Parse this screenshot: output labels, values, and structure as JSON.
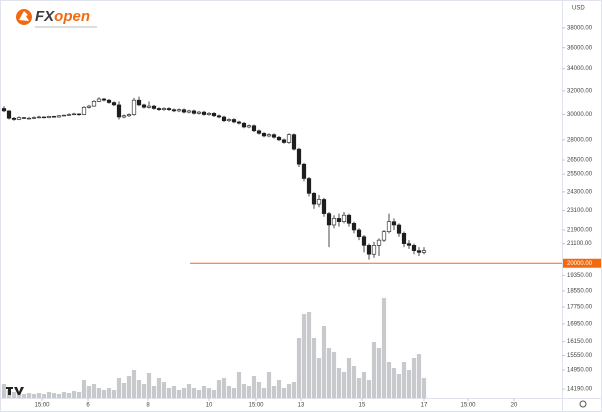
{
  "logo": [
    "FX",
    "open"
  ],
  "chart_data": {
    "type": "candlestick",
    "currency": "USD",
    "log_scale": true,
    "ylim": [
      13850,
      41000
    ],
    "yticks": [
      {
        "value": 38000,
        "label": "38000.00"
      },
      {
        "value": 36000,
        "label": "36000.00"
      },
      {
        "value": 34000,
        "label": "34000.00"
      },
      {
        "value": 32000,
        "label": "32000.00"
      },
      {
        "value": 30000,
        "label": "30000.00"
      },
      {
        "value": 28000,
        "label": "28000.00"
      },
      {
        "value": 26500,
        "label": "26500.00"
      },
      {
        "value": 25500,
        "label": "25500.00"
      },
      {
        "value": 24300,
        "label": "24300.00"
      },
      {
        "value": 23100,
        "label": "23100.00"
      },
      {
        "value": 21900,
        "label": "21900.00"
      },
      {
        "value": 21100,
        "label": "21100.00"
      },
      {
        "value": 19350,
        "label": "19350.00"
      },
      {
        "value": 18550,
        "label": "18550.00"
      },
      {
        "value": 17750,
        "label": "17750.00"
      },
      {
        "value": 16950,
        "label": "16950.00"
      },
      {
        "value": 16150,
        "label": "16150.00"
      },
      {
        "value": 15550,
        "label": "15550.00"
      },
      {
        "value": 14950,
        "label": "14950.00"
      },
      {
        "value": 14190,
        "label": "14190.00"
      }
    ],
    "xlim": [
      -0.8,
      111.6
    ],
    "xticks": [
      {
        "value": 7.6,
        "label": "15:00"
      },
      {
        "value": 16.8,
        "label": "6"
      },
      {
        "value": 28.8,
        "label": "8"
      },
      {
        "value": 41,
        "label": "10"
      },
      {
        "value": 50.4,
        "label": "15:00"
      },
      {
        "value": 59.4,
        "label": "13"
      },
      {
        "value": 71.6,
        "label": "15"
      },
      {
        "value": 84,
        "label": "17"
      },
      {
        "value": 92.8,
        "label": "15:00"
      },
      {
        "value": 102,
        "label": "20"
      }
    ],
    "up_color": "#ffffff",
    "down_color": "#1e1e1e",
    "volume_color": "#c8c9cd",
    "price_line": {
      "value": 20000,
      "label": "20000.00",
      "color": "#f26a10"
    },
    "open": [
      30500,
      30300,
      29700,
      29600,
      29750,
      29700,
      29700,
      29750,
      29800,
      29750,
      29850,
      29800,
      29900,
      29950,
      30000,
      30050,
      30000,
      30600,
      30700,
      31100,
      31300,
      31200,
      31000,
      30800,
      29800,
      29900,
      30000,
      31200,
      30800,
      30600,
      30700,
      30500,
      30400,
      30500,
      30400,
      30300,
      30400,
      30200,
      30300,
      30100,
      30200,
      30000,
      30100,
      29900,
      29800,
      29500,
      29600,
      29400,
      29300,
      29000,
      29100,
      28700,
      28500,
      28300,
      28400,
      28200,
      28000,
      27800,
      28400,
      27300,
      26200,
      25200,
      24200,
      23500,
      23800,
      22900,
      22200,
      22600,
      22400,
      22800,
      22300,
      21900,
      21500,
      21000,
      20500,
      21000,
      21300,
      21800,
      22400,
      22200,
      21700,
      21100,
      21000,
      20700,
      20600
    ],
    "high": [
      30700,
      30350,
      29800,
      29850,
      29800,
      29800,
      29850,
      29900,
      29850,
      29900,
      29900,
      29950,
      30000,
      30100,
      30150,
      30100,
      30700,
      30800,
      31200,
      31450,
      31400,
      31300,
      31100,
      31100,
      30000,
      30100,
      31400,
      31500,
      30900,
      31100,
      30800,
      30600,
      30600,
      30600,
      30500,
      30500,
      30500,
      30400,
      30400,
      30300,
      30300,
      30200,
      30200,
      30000,
      29900,
      29700,
      29700,
      29500,
      29400,
      29200,
      29200,
      28800,
      28600,
      28500,
      28500,
      28300,
      28100,
      28500,
      28500,
      27400,
      26300,
      25300,
      24300,
      24100,
      23900,
      23000,
      22800,
      22900,
      23000,
      22900,
      22400,
      22000,
      21600,
      21100,
      21200,
      21400,
      21900,
      22900,
      22600,
      22300,
      21800,
      21300,
      21100,
      20900,
      20900
    ],
    "low": [
      30200,
      29600,
      29500,
      29550,
      29650,
      29650,
      29650,
      29700,
      29700,
      29700,
      29750,
      29750,
      29850,
      29900,
      29950,
      29900,
      29950,
      30500,
      30650,
      31050,
      31100,
      30900,
      30700,
      29600,
      29700,
      29800,
      29900,
      30700,
      30500,
      30500,
      30400,
      30300,
      30300,
      30300,
      30200,
      30200,
      30100,
      30100,
      30000,
      30000,
      29900,
      29900,
      29800,
      29700,
      29400,
      29400,
      29300,
      29200,
      28900,
      28900,
      28600,
      28400,
      28200,
      28200,
      28100,
      27900,
      27700,
      27700,
      27200,
      26000,
      25000,
      24000,
      23200,
      23300,
      22700,
      20900,
      22000,
      22100,
      22300,
      22100,
      21700,
      21300,
      20600,
      20200,
      20300,
      20400,
      21200,
      21700,
      21900,
      21500,
      20900,
      20800,
      20500,
      20400,
      20500
    ],
    "close": [
      30300,
      29700,
      29600,
      29750,
      29700,
      29700,
      29750,
      29800,
      29750,
      29850,
      29800,
      29900,
      29950,
      30000,
      30050,
      30000,
      30600,
      30700,
      31100,
      31300,
      31200,
      31000,
      30800,
      29800,
      29900,
      30000,
      31200,
      30800,
      30600,
      30700,
      30500,
      30400,
      30500,
      30400,
      30300,
      30400,
      30200,
      30300,
      30100,
      30200,
      30000,
      30100,
      29900,
      29800,
      29500,
      29600,
      29400,
      29300,
      29000,
      29100,
      28700,
      28500,
      28300,
      28400,
      28200,
      28000,
      27800,
      28400,
      27300,
      26200,
      25200,
      24200,
      23500,
      23800,
      22900,
      22200,
      22600,
      22400,
      22800,
      22300,
      21900,
      21500,
      21000,
      20500,
      21000,
      21300,
      21800,
      22400,
      22200,
      21700,
      21100,
      21000,
      20700,
      20600,
      20700
    ],
    "volume": [
      14,
      8,
      6,
      5,
      4,
      5,
      4,
      5,
      4,
      6,
      5,
      4,
      6,
      5,
      7,
      6,
      18,
      12,
      14,
      10,
      8,
      10,
      8,
      20,
      15,
      22,
      28,
      18,
      14,
      25,
      12,
      20,
      16,
      10,
      12,
      8,
      10,
      14,
      10,
      8,
      12,
      10,
      8,
      18,
      20,
      12,
      10,
      26,
      14,
      12,
      22,
      16,
      10,
      26,
      12,
      18,
      10,
      14,
      16,
      60,
      84,
      86,
      60,
      40,
      72,
      50,
      46,
      30,
      26,
      40,
      32,
      20,
      26,
      18,
      56,
      50,
      100,
      36,
      30,
      24,
      36,
      28,
      40,
      44,
      20
    ]
  }
}
